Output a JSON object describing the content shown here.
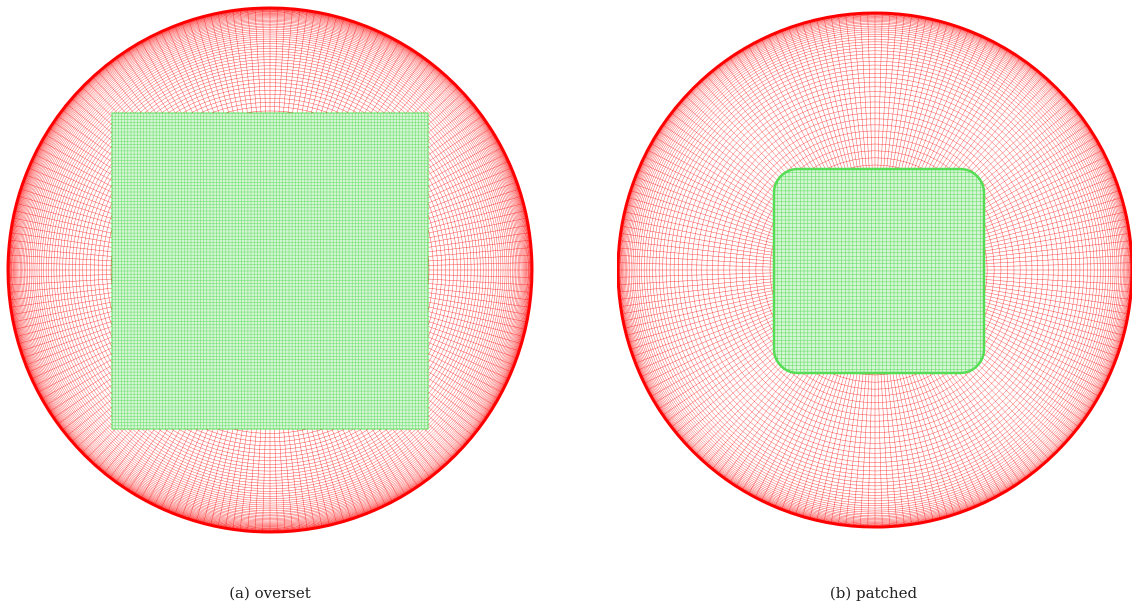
{
  "figure": {
    "panels": [
      {
        "id": "a",
        "caption": "(a) overset",
        "config": "overset"
      },
      {
        "id": "b",
        "caption": "(b) patched",
        "config": "patched"
      }
    ],
    "colors": {
      "outer_grid": "#ff2020",
      "outer_boundary": "#ff0000",
      "inner_grid": "#55dd55",
      "inner_fill": "#d6f5d6"
    }
  }
}
